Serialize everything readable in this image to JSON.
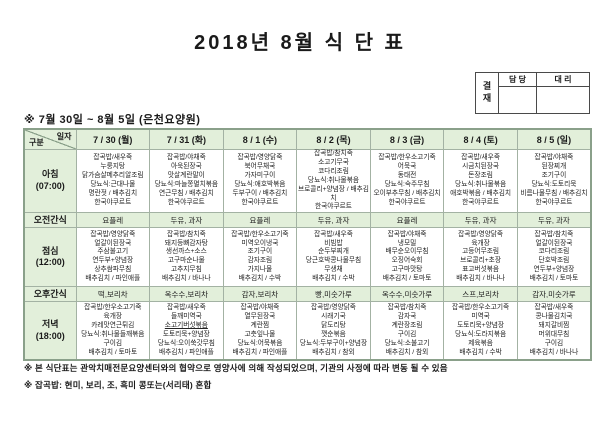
{
  "title": "2018년 8월 식 단 표",
  "approval": {
    "stamp_label": "결재",
    "columns": [
      "담 당",
      "대 리"
    ]
  },
  "subtitle": "※ 7월 30일 ~ 8월 5일 (은천요양원)",
  "table": {
    "corner_top": "일자",
    "corner_bottom": "구분",
    "dates": [
      "7 / 30 (월)",
      "7 / 31 (화)",
      "8 / 1 (수)",
      "8 / 2 (목)",
      "8 / 3 (금)",
      "8 / 4 (토)",
      "8 / 5 (일)"
    ],
    "underlined_items": [
      "소고기버섯볶음"
    ],
    "rows": [
      {
        "kind": "meal",
        "label_lines": [
          "아침",
          "(07:00)"
        ],
        "cells": [
          [
            "잡곡밥/새우죽",
            "누룽지탕",
            "닭가슴살메추리알조림",
            "당뇨식:근대나물",
            "명란젓 / 배추김치",
            "한국야쿠르트"
          ],
          [
            "잡곡밥/야채죽",
            "아욱된장국",
            "맛살계란말이",
            "당뇨식:마늘쫑멸치볶음",
            "연근무침 / 배추김치",
            "한국야쿠르트"
          ],
          [
            "잡곡밥/영양닭죽",
            "북어무채국",
            "가자미구이",
            "당뇨식:애호박볶음",
            "두부구이 / 배추김치",
            "한국야쿠르트"
          ],
          [
            "잡곡밥/참치죽",
            "소고기무국",
            "코다리조림",
            "당뇨식:취나물볶음",
            "브로콜리+양념장 / 배추김치",
            "한국야쿠르트"
          ],
          [
            "잡곡밥/한우소고기죽",
            "어묵국",
            "동태전",
            "당뇨식:숙주무침",
            "오이부추무침 / 배추김치",
            "한국야쿠르트"
          ],
          [
            "잡곡밥/새우죽",
            "시금치된장국",
            "돈장조림",
            "당뇨식:취나물볶음",
            "애호박볶음 / 배추김치",
            "한국야쿠르트"
          ],
          [
            "잡곡밥/야채죽",
            "된장찌개",
            "조기구이",
            "당뇨식:도토리묵",
            "비름나물무침 / 배추김치",
            "한국야쿠르트"
          ]
        ]
      },
      {
        "kind": "snack",
        "label_lines": [
          "오전간식"
        ],
        "cells": [
          "요플레",
          "두유, 과자",
          "요플레",
          "두유, 과자",
          "요플레",
          "두유, 과자",
          "두유, 과자"
        ]
      },
      {
        "kind": "meal",
        "label_lines": [
          "점심",
          "(12:00)"
        ],
        "cells": [
          [
            "잡곡밥/영양닭죽",
            "얼갈이된장국",
            "주삼불고기",
            "연두부+양념장",
            "상추쌈파무침",
            "배추김치 / 파인애플"
          ],
          [
            "잡곡밥/참치죽",
            "돼지등뼈감자탕",
            "생선까스+소스",
            "고구마순나물",
            "고추지무침",
            "배추김치 / 바나나"
          ],
          [
            "잡곡밥/한우소고기죽",
            "미역오이냉국",
            "조기구이",
            "감자조림",
            "가지나물",
            "배추김치 / 수박"
          ],
          [
            "잡곡밥/새우죽",
            "비빔밥",
            "순두부찌개",
            "당근호박콩나물무침",
            "무생채",
            "배추김치 / 수박"
          ],
          [
            "잡곡밥/야채죽",
            "냉모밀",
            "배무순오이무침",
            "오징어숙회",
            "고구마맛탕",
            "배추김치 / 토마토"
          ],
          [
            "잡곡밥/영양닭죽",
            "육개장",
            "고등어무조림",
            "브로콜리+초장",
            "표고버섯볶음",
            "배추김치 / 바나나"
          ],
          [
            "잡곡밥/참치죽",
            "얼갈이된장국",
            "코다리조림",
            "단호박조림",
            "연두부+양념장",
            "배추김치 / 토마토"
          ]
        ]
      },
      {
        "kind": "snack",
        "label_lines": [
          "오후간식"
        ],
        "cells": [
          "떡,보리차",
          "옥수수,보리차",
          "감자,보리차",
          "빵,미숫가루",
          "옥수수,미숫가루",
          "스프,보리차",
          "감자,미숫가루"
        ]
      },
      {
        "kind": "meal",
        "label_lines": [
          "저녁",
          "(18:00)"
        ],
        "cells": [
          [
            "잡곡밥/한우소고기죽",
            "육개장",
            "카레맛연근튀김",
            "당뇨식:취나물들깨볶음",
            "구이김",
            "배추김치 / 토마토"
          ],
          [
            "잡곡밥/새우죽",
            "들깨미역국",
            "소고기버섯볶음",
            "도토리묵+양념장",
            "당뇨식:오이쑥갓무침",
            "배추김치 / 파인애플"
          ],
          [
            "잡곡밥/야채죽",
            "열무된장국",
            "계란찜",
            "고춧잎나물",
            "당뇨식:어묵볶음",
            "배추김치 / 파인애플"
          ],
          [
            "잡곡밥/영양닭죽",
            "시래기국",
            "닭도리탕",
            "깻순볶음",
            "당뇨식:두부구이+양념장",
            "배추김치 / 참외"
          ],
          [
            "잡곡밥/참치죽",
            "감자국",
            "계란장조림",
            "구이김",
            "당뇨식:소불고기",
            "배추김치 / 참외"
          ],
          [
            "잡곡밥/한우소고기죽",
            "미역국",
            "도토리묵+양념장",
            "당뇨식:도라지볶음",
            "제육볶음",
            "배추김치 / 수박"
          ],
          [
            "잡곡밥/새우죽",
            "콩나물김치국",
            "돼지갈비찜",
            "머위대무침",
            "구이김",
            "배추김치 / 바나나"
          ]
        ]
      }
    ]
  },
  "notes": [
    "※ 본 식단표는 관악치매전문요양센터와의 협약으로 영양사에 의해 작성되었으며, 기관의 사정에 따라 변동 될 수 있음",
    "※ 잡곡밥: 현미, 보리, 조, 흑미 콩또는(서리태) 혼합"
  ],
  "colors": {
    "header_green": "#e2efda",
    "grid_border": "#a3b2a3"
  }
}
